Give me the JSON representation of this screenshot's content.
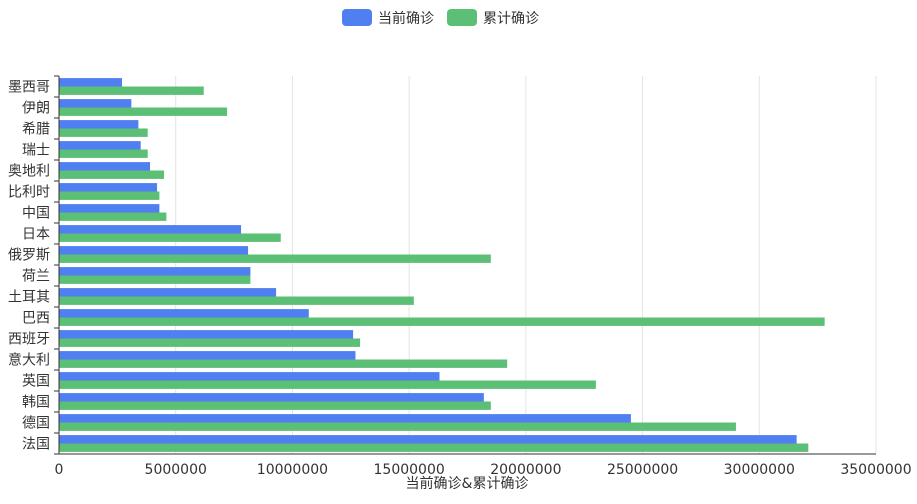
{
  "chart_data": {
    "type": "bar",
    "orientation": "horizontal",
    "categories": [
      "墨西哥",
      "伊朗",
      "希腊",
      "瑞士",
      "奥地利",
      "比利时",
      "中国",
      "日本",
      "俄罗斯",
      "荷兰",
      "土耳其",
      "巴西",
      "西班牙",
      "意大利",
      "英国",
      "韩国",
      "德国",
      "法国"
    ],
    "series": [
      {
        "name": "当前确诊",
        "color": "#4f7ff0",
        "values": [
          2700000,
          3100000,
          3400000,
          3500000,
          3900000,
          4200000,
          4300000,
          7800000,
          8100000,
          8200000,
          9300000,
          10700000,
          12600000,
          12700000,
          16300000,
          18200000,
          24500000,
          31600000
        ]
      },
      {
        "name": "累计确诊",
        "color": "#5cbf76",
        "values": [
          6200000,
          7200000,
          3800000,
          3800000,
          4500000,
          4300000,
          4600000,
          9500000,
          18500000,
          8200000,
          15200000,
          32800000,
          12900000,
          19200000,
          23000000,
          18500000,
          29000000,
          32100000
        ]
      }
    ],
    "xlim": [
      0,
      35000000
    ],
    "x_ticks": [
      "0",
      "5000000",
      "10000000",
      "15000000",
      "20000000",
      "25000000",
      "30000000",
      "35000000"
    ],
    "xlabel": "当前确诊&累计确诊",
    "ylabel": "",
    "grid": "vertical",
    "legend_position": "top-center"
  }
}
